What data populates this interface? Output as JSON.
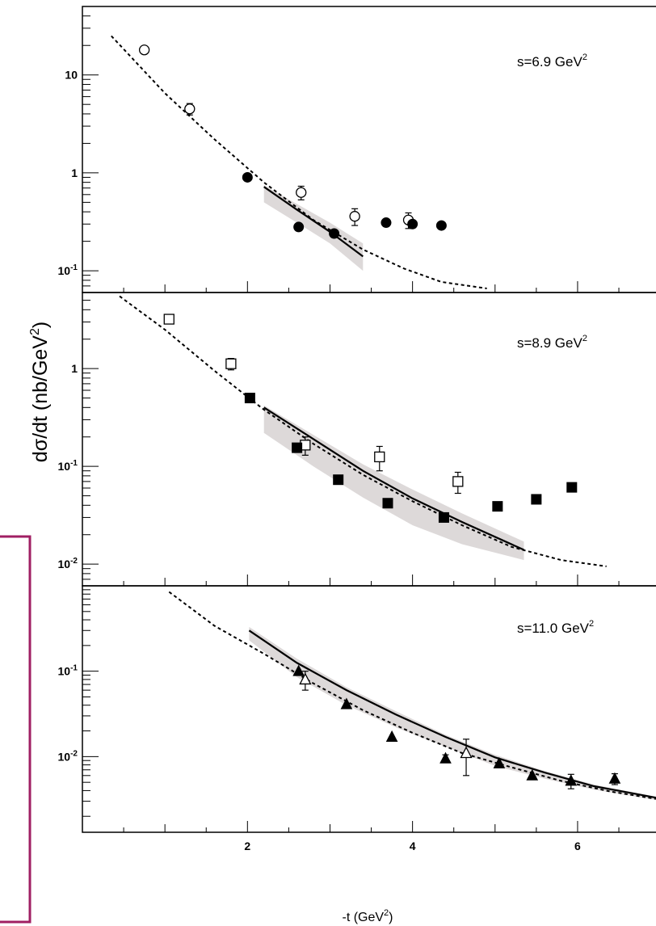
{
  "chart_data": {
    "type": "scatter",
    "xlabel": "-t (GeV",
    "xlabel_sup": "2",
    "xlabel_close": ")",
    "ylabel": "dσ/dt (nb/GeV",
    "ylabel_sup": "2",
    "ylabel_close": ")",
    "xlim": [
      0,
      6.95
    ],
    "x_tick_labels": [
      "2",
      "4",
      "6"
    ],
    "yscale": "log",
    "grid": false,
    "legend": "none",
    "panels": [
      {
        "energy_label": "s=6.9 GeV",
        "energy_sup": "2",
        "ylim": [
          0.06,
          50
        ],
        "y_tick_labels": [
          {
            "value": 10,
            "base": "10",
            "exp": ""
          },
          {
            "value": 1,
            "base": "1",
            "exp": ""
          },
          {
            "value": 0.1,
            "base": "10",
            "exp": "-1"
          }
        ],
        "series": [
          {
            "marker": "open-circle",
            "points": [
              [
                0.75,
                18
              ],
              [
                1.3,
                4.5
              ],
              [
                2.65,
                0.63
              ],
              [
                3.3,
                0.36
              ],
              [
                3.95,
                0.33
              ]
            ],
            "errors": [
              0,
              0.6,
              0.1,
              0.07,
              0.06
            ]
          },
          {
            "marker": "filled-circle",
            "points": [
              [
                2.0,
                0.9
              ],
              [
                2.62,
                0.28
              ],
              [
                3.05,
                0.24
              ],
              [
                3.68,
                0.31
              ],
              [
                4.0,
                0.3
              ],
              [
                4.35,
                0.29
              ]
            ],
            "errors": [
              0,
              0,
              0,
              0,
              0,
              0
            ]
          }
        ],
        "model_dashed": [
          [
            0.35,
            25
          ],
          [
            1.0,
            6.5
          ],
          [
            1.6,
            2.2
          ],
          [
            2.2,
            0.8
          ],
          [
            2.8,
            0.33
          ],
          [
            3.4,
            0.165
          ],
          [
            3.9,
            0.105
          ],
          [
            4.35,
            0.077
          ],
          [
            4.9,
            0.066
          ]
        ],
        "model_solid": [
          [
            2.2,
            0.72
          ],
          [
            2.6,
            0.42
          ],
          [
            3.0,
            0.25
          ],
          [
            3.4,
            0.14
          ]
        ],
        "band_upper": [
          [
            2.2,
            0.75
          ],
          [
            2.6,
            0.48
          ],
          [
            3.0,
            0.31
          ],
          [
            3.4,
            0.19
          ]
        ],
        "band_lower": [
          [
            2.2,
            0.5
          ],
          [
            2.6,
            0.31
          ],
          [
            3.0,
            0.19
          ],
          [
            3.4,
            0.1
          ]
        ]
      },
      {
        "energy_label": "s=8.9 GeV",
        "energy_sup": "2",
        "ylim": [
          0.006,
          6
        ],
        "y_tick_labels": [
          {
            "value": 1,
            "base": "1",
            "exp": ""
          },
          {
            "value": 0.1,
            "base": "10",
            "exp": "-1"
          },
          {
            "value": 0.01,
            "base": "10",
            "exp": "-2"
          }
        ],
        "series": [
          {
            "marker": "open-square",
            "points": [
              [
                1.05,
                3.2
              ],
              [
                1.8,
                1.12
              ],
              [
                2.7,
                0.165
              ],
              [
                3.6,
                0.125
              ],
              [
                4.55,
                0.07
              ]
            ],
            "errors": [
              0,
              0.15,
              0.035,
              0.035,
              0.017
            ]
          },
          {
            "marker": "filled-square",
            "points": [
              [
                2.03,
                0.5
              ],
              [
                2.6,
                0.155
              ],
              [
                3.1,
                0.073
              ],
              [
                3.7,
                0.042
              ],
              [
                4.38,
                0.03
              ],
              [
                5.03,
                0.039
              ],
              [
                5.5,
                0.046
              ],
              [
                5.93,
                0.061
              ]
            ],
            "errors": [
              0,
              0,
              0,
              0,
              0,
              0,
              0,
              0
            ]
          }
        ],
        "model_dashed": [
          [
            0.45,
            5.5
          ],
          [
            1.0,
            2.5
          ],
          [
            1.6,
            0.95
          ],
          [
            2.2,
            0.38
          ],
          [
            2.8,
            0.17
          ],
          [
            3.4,
            0.082
          ],
          [
            4.0,
            0.044
          ],
          [
            4.6,
            0.025
          ],
          [
            5.2,
            0.015
          ],
          [
            5.8,
            0.011
          ],
          [
            6.35,
            0.0095
          ]
        ],
        "model_solid": [
          [
            2.2,
            0.4
          ],
          [
            2.8,
            0.19
          ],
          [
            3.4,
            0.09
          ],
          [
            4.0,
            0.047
          ],
          [
            4.6,
            0.027
          ],
          [
            5.35,
            0.014
          ]
        ],
        "band_upper": [
          [
            2.2,
            0.42
          ],
          [
            2.8,
            0.21
          ],
          [
            3.4,
            0.105
          ],
          [
            4.0,
            0.058
          ],
          [
            4.6,
            0.033
          ],
          [
            5.35,
            0.017
          ]
        ],
        "band_lower": [
          [
            2.2,
            0.22
          ],
          [
            2.8,
            0.1
          ],
          [
            3.4,
            0.048
          ],
          [
            4.0,
            0.025
          ],
          [
            4.6,
            0.016
          ],
          [
            5.35,
            0.011
          ]
        ]
      },
      {
        "energy_label": "s=11.0 GeV",
        "energy_sup": "2",
        "ylim": [
          0.0013,
          1.0
        ],
        "y_tick_labels": [
          {
            "value": 0.1,
            "base": "10",
            "exp": "-1"
          },
          {
            "value": 0.01,
            "base": "10",
            "exp": "-2"
          }
        ],
        "series": [
          {
            "marker": "open-triangle",
            "points": [
              [
                2.7,
                0.08
              ],
              [
                4.65,
                0.011
              ]
            ],
            "errors": [
              0.02,
              0.005
            ]
          },
          {
            "marker": "filled-triangle",
            "points": [
              [
                2.62,
                0.1
              ],
              [
                3.2,
                0.041
              ],
              [
                3.75,
                0.017
              ],
              [
                4.4,
                0.0095
              ],
              [
                5.05,
                0.0083
              ],
              [
                5.45,
                0.006
              ],
              [
                5.92,
                0.0052
              ],
              [
                6.45,
                0.0055
              ]
            ],
            "errors": [
              0,
              0,
              0,
              0.001,
              0,
              0,
              0.001,
              0.0008
            ]
          }
        ],
        "model_dashed": [
          [
            1.05,
            0.85
          ],
          [
            1.6,
            0.34
          ],
          [
            2.2,
            0.16
          ],
          [
            2.8,
            0.072
          ],
          [
            3.4,
            0.035
          ],
          [
            4.0,
            0.019
          ],
          [
            4.6,
            0.011
          ],
          [
            5.2,
            0.0075
          ],
          [
            5.8,
            0.0052
          ],
          [
            6.4,
            0.0039
          ],
          [
            6.95,
            0.0032
          ]
        ],
        "model_solid": [
          [
            2.02,
            0.3
          ],
          [
            2.6,
            0.125
          ],
          [
            3.2,
            0.06
          ],
          [
            3.8,
            0.031
          ],
          [
            4.4,
            0.017
          ],
          [
            5.0,
            0.0098
          ],
          [
            5.6,
            0.0065
          ],
          [
            6.2,
            0.0045
          ],
          [
            6.95,
            0.0033
          ]
        ],
        "band_upper": [
          [
            2.02,
            0.33
          ],
          [
            2.6,
            0.14
          ],
          [
            3.2,
            0.065
          ],
          [
            3.8,
            0.034
          ],
          [
            4.4,
            0.018
          ],
          [
            5.0,
            0.0105
          ],
          [
            5.6,
            0.0068
          ],
          [
            6.2,
            0.0047
          ],
          [
            6.95,
            0.0034
          ]
        ],
        "band_lower": [
          [
            2.02,
            0.23
          ],
          [
            2.6,
            0.085
          ],
          [
            3.2,
            0.04
          ],
          [
            3.8,
            0.022
          ],
          [
            4.4,
            0.013
          ],
          [
            5.0,
            0.0078
          ],
          [
            5.6,
            0.0055
          ],
          [
            6.2,
            0.0041
          ],
          [
            6.95,
            0.0031
          ]
        ]
      }
    ]
  }
}
